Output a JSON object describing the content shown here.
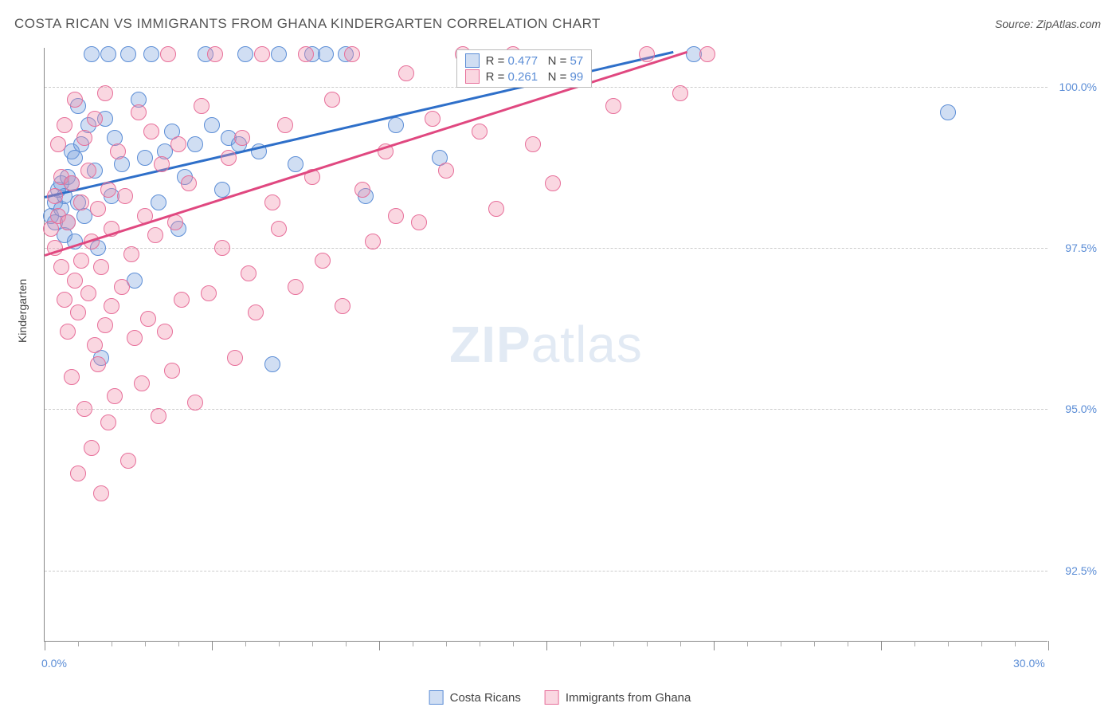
{
  "title": "COSTA RICAN VS IMMIGRANTS FROM GHANA KINDERGARTEN CORRELATION CHART",
  "source": "Source: ZipAtlas.com",
  "watermark_bold": "ZIP",
  "watermark_light": "atlas",
  "axis": {
    "y_title": "Kindergarten",
    "x_min": 0.0,
    "x_max": 30.0,
    "y_min": 91.4,
    "y_max": 100.6,
    "x_labels": [
      {
        "v": 0.0,
        "t": "0.0%"
      },
      {
        "v": 30.0,
        "t": "30.0%"
      }
    ],
    "y_labels": [
      {
        "v": 100.0,
        "t": "100.0%"
      },
      {
        "v": 97.5,
        "t": "97.5%"
      },
      {
        "v": 95.0,
        "t": "95.0%"
      },
      {
        "v": 92.5,
        "t": "92.5%"
      }
    ],
    "y_gridlines": [
      100.0,
      97.5,
      95.0,
      92.5
    ],
    "x_major_ticks": [
      0,
      5,
      10,
      15,
      20,
      25,
      30
    ],
    "x_minor_ticks": [
      1,
      2,
      3,
      4,
      6,
      7,
      8,
      9,
      11,
      12,
      13,
      14,
      16,
      17,
      18,
      19,
      21,
      22,
      23,
      24,
      26,
      27,
      28,
      29
    ]
  },
  "series": [
    {
      "key": "costa",
      "label": "Costa Ricans",
      "fill": "rgba(120,160,220,0.35)",
      "stroke": "#5b8dd6",
      "line_color": "#2e6fc9",
      "marker_r": 10,
      "R": "0.477",
      "N": "57",
      "trend": {
        "x1": 0.0,
        "y1": 98.3,
        "x2": 18.8,
        "y2": 100.55
      },
      "points": [
        [
          0.2,
          98.0
        ],
        [
          0.3,
          98.2
        ],
        [
          0.3,
          97.9
        ],
        [
          0.4,
          98.4
        ],
        [
          0.5,
          98.1
        ],
        [
          0.5,
          98.5
        ],
        [
          0.6,
          97.7
        ],
        [
          0.6,
          98.3
        ],
        [
          0.7,
          98.6
        ],
        [
          0.7,
          97.9
        ],
        [
          0.8,
          98.5
        ],
        [
          0.8,
          99.0
        ],
        [
          0.9,
          98.9
        ],
        [
          0.9,
          97.6
        ],
        [
          1.0,
          99.7
        ],
        [
          1.0,
          98.2
        ],
        [
          1.1,
          99.1
        ],
        [
          1.2,
          98.0
        ],
        [
          1.3,
          99.4
        ],
        [
          1.4,
          100.5
        ],
        [
          1.5,
          98.7
        ],
        [
          1.6,
          97.5
        ],
        [
          1.7,
          95.8
        ],
        [
          1.8,
          99.5
        ],
        [
          1.9,
          100.5
        ],
        [
          2.0,
          98.3
        ],
        [
          2.1,
          99.2
        ],
        [
          2.3,
          98.8
        ],
        [
          2.5,
          100.5
        ],
        [
          2.7,
          97.0
        ],
        [
          2.8,
          99.8
        ],
        [
          3.0,
          98.9
        ],
        [
          3.2,
          100.5
        ],
        [
          3.4,
          98.2
        ],
        [
          3.6,
          99.0
        ],
        [
          3.8,
          99.3
        ],
        [
          4.0,
          97.8
        ],
        [
          4.2,
          98.6
        ],
        [
          4.5,
          99.1
        ],
        [
          4.8,
          100.5
        ],
        [
          5.0,
          99.4
        ],
        [
          5.3,
          98.4
        ],
        [
          5.5,
          99.2
        ],
        [
          5.8,
          99.1
        ],
        [
          6.0,
          100.5
        ],
        [
          6.4,
          99.0
        ],
        [
          6.8,
          95.7
        ],
        [
          7.0,
          100.5
        ],
        [
          7.5,
          98.8
        ],
        [
          8.0,
          100.5
        ],
        [
          8.4,
          100.5
        ],
        [
          9.0,
          100.5
        ],
        [
          9.6,
          98.3
        ],
        [
          10.5,
          99.4
        ],
        [
          11.8,
          98.9
        ],
        [
          19.4,
          100.5
        ],
        [
          27.0,
          99.6
        ]
      ]
    },
    {
      "key": "ghana",
      "label": "Immigrants from Ghana",
      "fill": "rgba(240,140,170,0.35)",
      "stroke": "#e76f9a",
      "line_color": "#e04880",
      "marker_r": 10,
      "R": "0.261",
      "N": "99",
      "trend": {
        "x1": 0.0,
        "y1": 97.4,
        "x2": 19.2,
        "y2": 100.55
      },
      "points": [
        [
          0.2,
          97.8
        ],
        [
          0.3,
          98.3
        ],
        [
          0.3,
          97.5
        ],
        [
          0.4,
          98.0
        ],
        [
          0.4,
          99.1
        ],
        [
          0.5,
          97.2
        ],
        [
          0.5,
          98.6
        ],
        [
          0.6,
          96.7
        ],
        [
          0.6,
          99.4
        ],
        [
          0.7,
          97.9
        ],
        [
          0.7,
          96.2
        ],
        [
          0.8,
          98.5
        ],
        [
          0.8,
          95.5
        ],
        [
          0.9,
          97.0
        ],
        [
          0.9,
          99.8
        ],
        [
          1.0,
          94.0
        ],
        [
          1.0,
          96.5
        ],
        [
          1.1,
          98.2
        ],
        [
          1.1,
          97.3
        ],
        [
          1.2,
          95.0
        ],
        [
          1.2,
          99.2
        ],
        [
          1.3,
          96.8
        ],
        [
          1.3,
          98.7
        ],
        [
          1.4,
          94.4
        ],
        [
          1.4,
          97.6
        ],
        [
          1.5,
          96.0
        ],
        [
          1.5,
          99.5
        ],
        [
          1.6,
          95.7
        ],
        [
          1.6,
          98.1
        ],
        [
          1.7,
          93.7
        ],
        [
          1.7,
          97.2
        ],
        [
          1.8,
          96.3
        ],
        [
          1.8,
          99.9
        ],
        [
          1.9,
          94.8
        ],
        [
          1.9,
          98.4
        ],
        [
          2.0,
          96.6
        ],
        [
          2.0,
          97.8
        ],
        [
          2.1,
          95.2
        ],
        [
          2.2,
          99.0
        ],
        [
          2.3,
          96.9
        ],
        [
          2.4,
          98.3
        ],
        [
          2.5,
          94.2
        ],
        [
          2.6,
          97.4
        ],
        [
          2.7,
          96.1
        ],
        [
          2.8,
          99.6
        ],
        [
          2.9,
          95.4
        ],
        [
          3.0,
          98.0
        ],
        [
          3.1,
          96.4
        ],
        [
          3.2,
          99.3
        ],
        [
          3.3,
          97.7
        ],
        [
          3.4,
          94.9
        ],
        [
          3.5,
          98.8
        ],
        [
          3.6,
          96.2
        ],
        [
          3.7,
          100.5
        ],
        [
          3.8,
          95.6
        ],
        [
          3.9,
          97.9
        ],
        [
          4.0,
          99.1
        ],
        [
          4.1,
          96.7
        ],
        [
          4.3,
          98.5
        ],
        [
          4.5,
          95.1
        ],
        [
          4.7,
          99.7
        ],
        [
          4.9,
          96.8
        ],
        [
          5.1,
          100.5
        ],
        [
          5.3,
          97.5
        ],
        [
          5.5,
          98.9
        ],
        [
          5.7,
          95.8
        ],
        [
          5.9,
          99.2
        ],
        [
          6.1,
          97.1
        ],
        [
          6.3,
          96.5
        ],
        [
          6.5,
          100.5
        ],
        [
          6.8,
          98.2
        ],
        [
          7.0,
          97.8
        ],
        [
          7.2,
          99.4
        ],
        [
          7.5,
          96.9
        ],
        [
          7.8,
          100.5
        ],
        [
          8.0,
          98.6
        ],
        [
          8.3,
          97.3
        ],
        [
          8.6,
          99.8
        ],
        [
          8.9,
          96.6
        ],
        [
          9.2,
          100.5
        ],
        [
          9.5,
          98.4
        ],
        [
          9.8,
          97.6
        ],
        [
          10.2,
          99.0
        ],
        [
          10.5,
          98.0
        ],
        [
          10.8,
          100.2
        ],
        [
          11.2,
          97.9
        ],
        [
          11.6,
          99.5
        ],
        [
          12.0,
          98.7
        ],
        [
          12.5,
          100.5
        ],
        [
          13.0,
          99.3
        ],
        [
          13.5,
          98.1
        ],
        [
          14.0,
          100.5
        ],
        [
          14.6,
          99.1
        ],
        [
          15.2,
          98.5
        ],
        [
          16.0,
          100.4
        ],
        [
          17.0,
          99.7
        ],
        [
          18.0,
          100.5
        ],
        [
          19.0,
          99.9
        ],
        [
          19.8,
          100.5
        ]
      ]
    }
  ],
  "legend_top": {
    "r_label": "R =",
    "n_label": "N ="
  }
}
